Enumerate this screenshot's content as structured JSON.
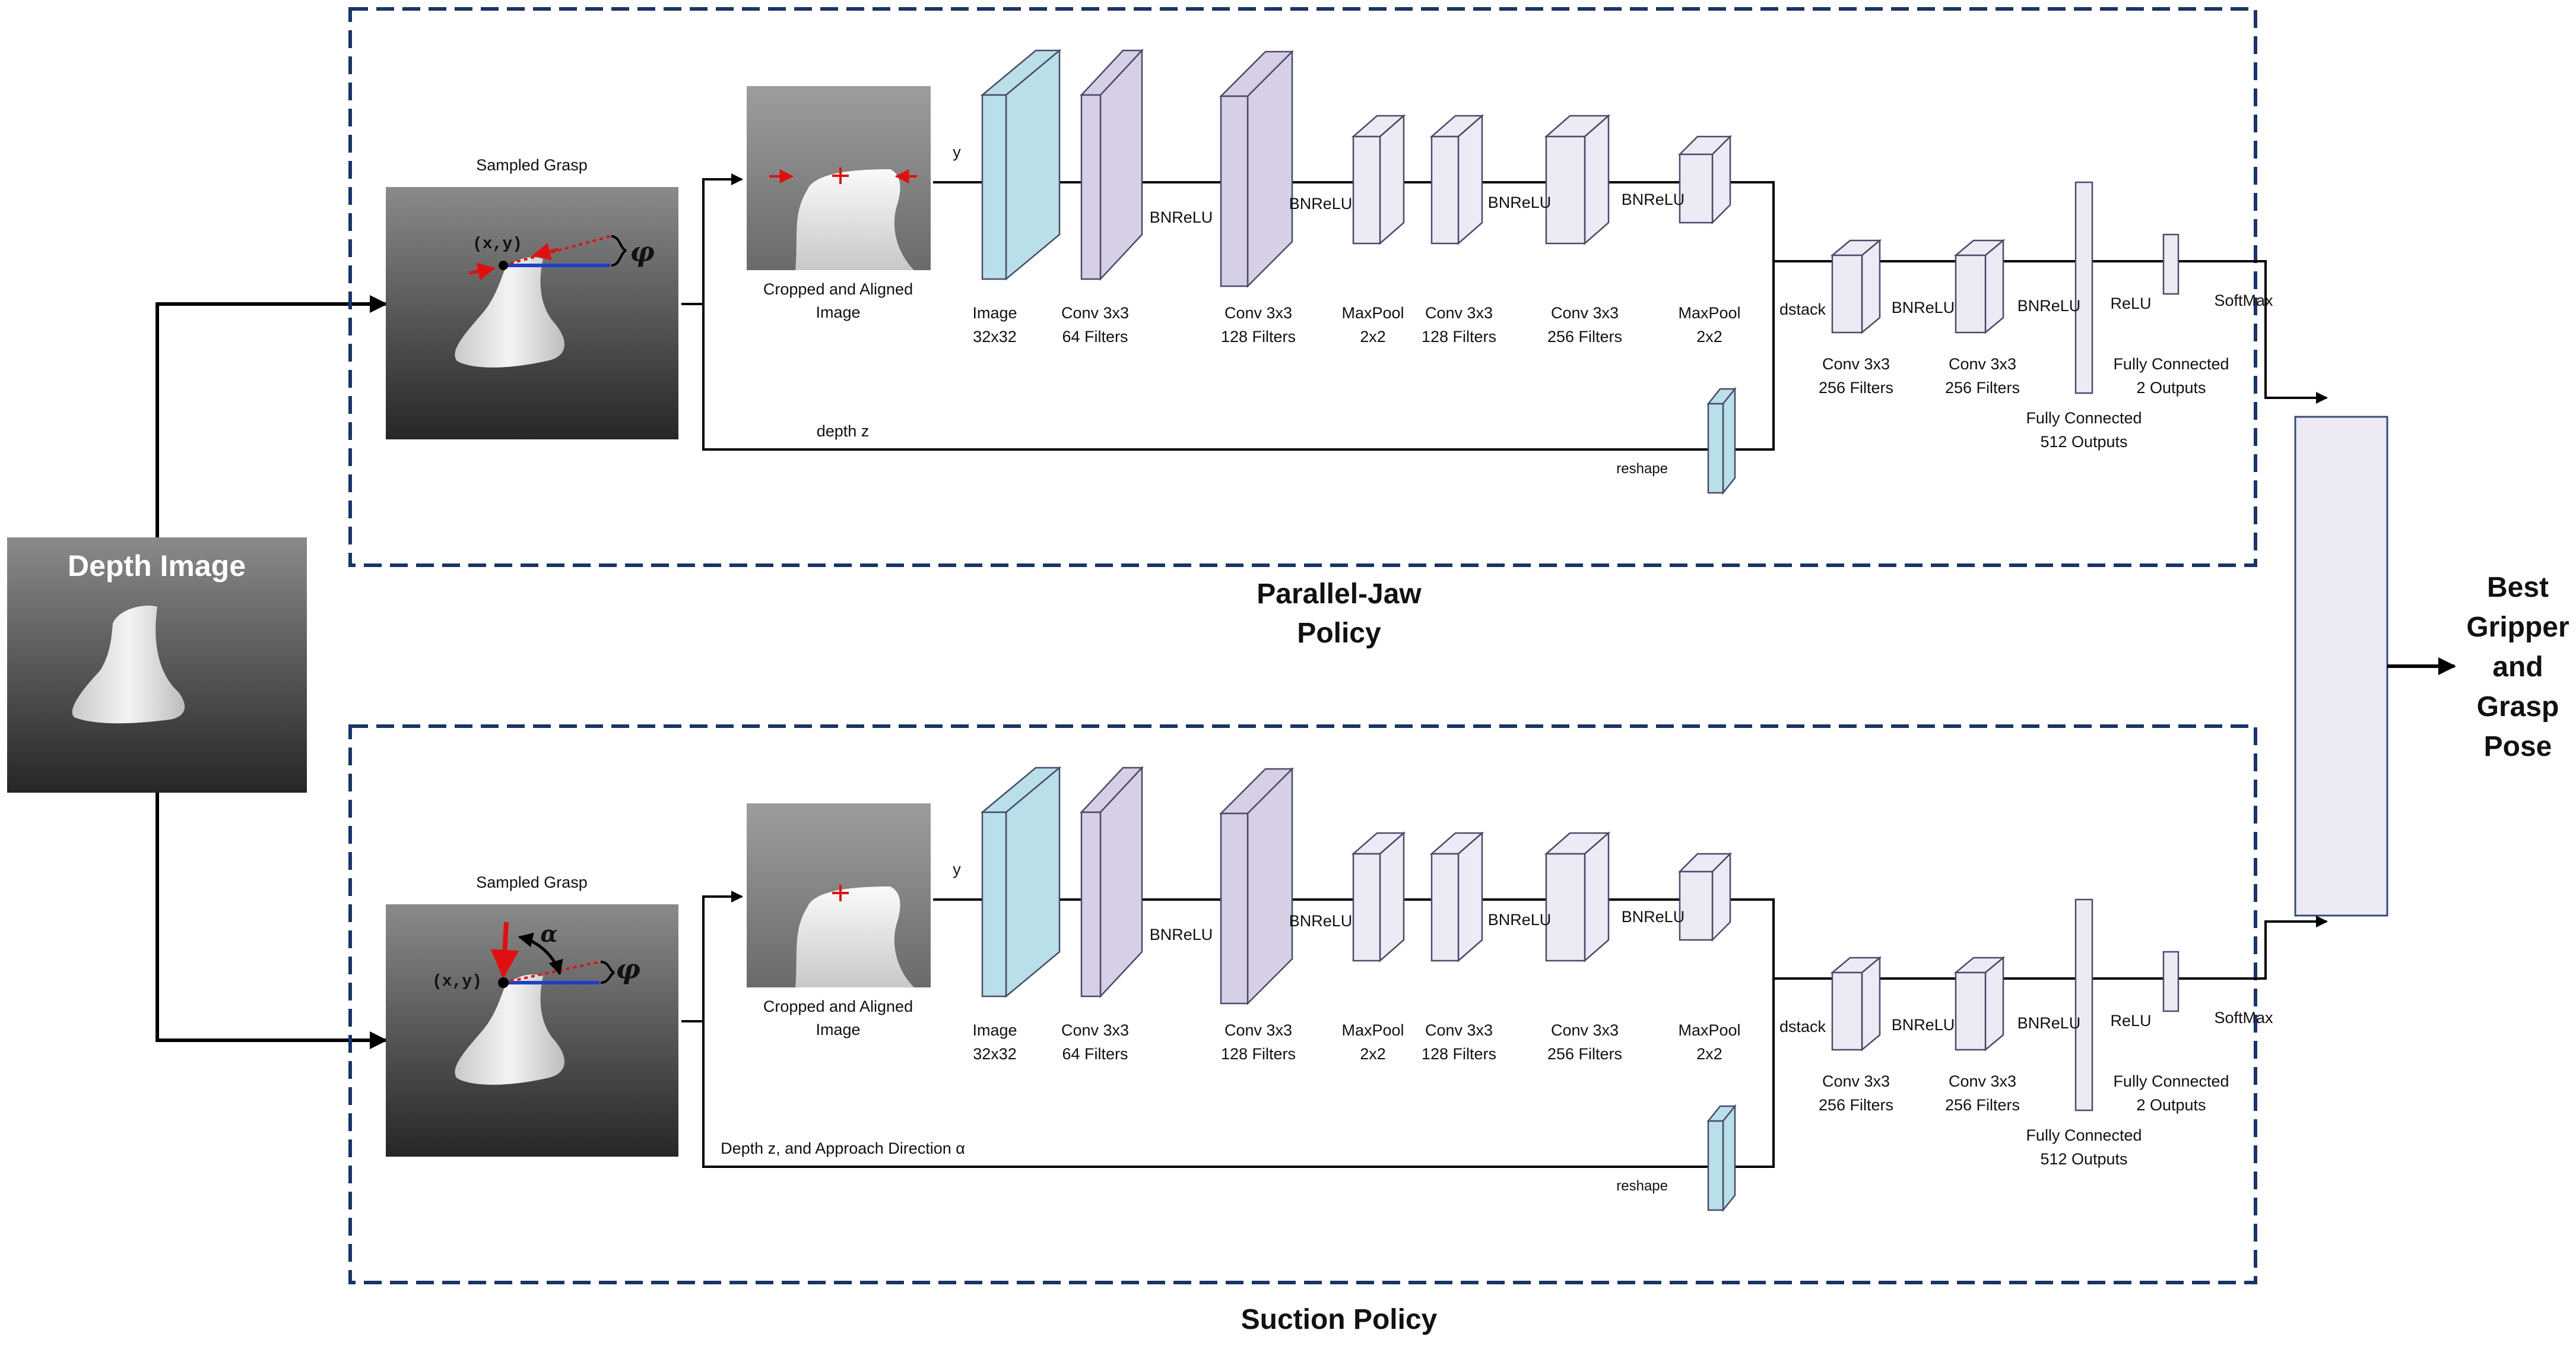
{
  "depth_image": {
    "label": "Depth Image"
  },
  "output": {
    "lines": [
      "Best",
      "Gripper",
      "and",
      "Grasp",
      "Pose"
    ]
  },
  "policies": [
    {
      "title_lines": [
        "Parallel-Jaw",
        "Policy"
      ],
      "sampled_grasp": "Sampled Grasp",
      "grasp_coord": "(x,y)",
      "grasp_angle": "φ",
      "approach_angle": "",
      "cropped_lines": [
        "Cropped and Aligned",
        "Image"
      ],
      "input_label": "y",
      "side_label": "depth z",
      "reshape_label": "reshape",
      "dstack_label": "dstack",
      "layers": [
        {
          "lines": [
            "Image",
            "32x32"
          ]
        },
        {
          "lines": [
            "Conv 3x3",
            "64 Filters"
          ]
        },
        {
          "lines": [
            "Conv 3x3",
            "128 Filters"
          ]
        },
        {
          "lines": [
            "MaxPool",
            "2x2"
          ]
        },
        {
          "lines": [
            "Conv 3x3",
            "128 Filters"
          ]
        },
        {
          "lines": [
            "Conv 3x3",
            "256 Filters"
          ]
        },
        {
          "lines": [
            "MaxPool",
            "2x2"
          ]
        },
        {
          "lines": [
            "Conv 3x3",
            "256 Filters"
          ]
        },
        {
          "lines": [
            "Conv 3x3",
            "256 Filters"
          ]
        },
        {
          "lines": [
            "Fully Connected",
            "512  Outputs"
          ]
        },
        {
          "lines": [
            "Fully Connected",
            "2  Outputs"
          ]
        }
      ],
      "activations": [
        "BNReLU",
        "BNReLU",
        "BNReLU",
        "BNReLU",
        "BNReLU",
        "BNReLU",
        "ReLU",
        "SoftMax"
      ]
    },
    {
      "title_lines": [
        "Suction Policy",
        ""
      ],
      "sampled_grasp": "Sampled Grasp",
      "grasp_coord": "(x,y)",
      "grasp_angle": "φ",
      "approach_angle": "α",
      "cropped_lines": [
        "Cropped and Aligned",
        "Image"
      ],
      "input_label": "y",
      "side_label": "Depth z, and Approach Direction α",
      "reshape_label": "reshape",
      "dstack_label": "dstack",
      "layers": [
        {
          "lines": [
            "Image",
            "32x32"
          ]
        },
        {
          "lines": [
            "Conv 3x3",
            "64 Filters"
          ]
        },
        {
          "lines": [
            "Conv 3x3",
            "128 Filters"
          ]
        },
        {
          "lines": [
            "MaxPool",
            "2x2"
          ]
        },
        {
          "lines": [
            "Conv 3x3",
            "128 Filters"
          ]
        },
        {
          "lines": [
            "Conv 3x3",
            "256 Filters"
          ]
        },
        {
          "lines": [
            "MaxPool",
            "2x2"
          ]
        },
        {
          "lines": [
            "Conv 3x3",
            "256 Filters"
          ]
        },
        {
          "lines": [
            "Conv 3x3",
            "256 Filters"
          ]
        },
        {
          "lines": [
            "Fully Connected",
            "512  Outputs"
          ]
        },
        {
          "lines": [
            "Fully Connected",
            "2  Outputs"
          ]
        }
      ],
      "activations": [
        "BNReLU",
        "BNReLU",
        "BNReLU",
        "BNReLU",
        "BNReLU",
        "BNReLU",
        "ReLU",
        "SoftMax"
      ]
    }
  ],
  "colors": {
    "image_layer": "#b9dfe9",
    "conv_layer": "#d6cfe5",
    "small_layer": "#eeeaf5",
    "dash_border": "#1a3466",
    "grasp_arrow": "#e01010",
    "axis_line": "#1f3fc8"
  }
}
